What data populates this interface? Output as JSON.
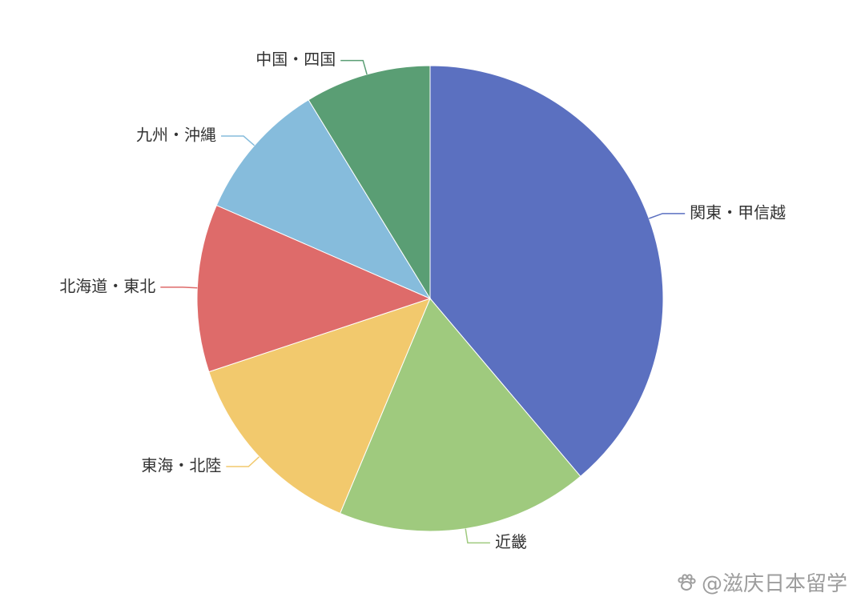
{
  "chart_data": {
    "type": "pie",
    "title": "",
    "categories": [
      "関東・甲信越",
      "近畿",
      "東海・北陸",
      "北海道・東北",
      "九州・沖縄",
      "中国・四国"
    ],
    "values": [
      40,
      18,
      14,
      12,
      10,
      9
    ],
    "colors": [
      "#5b70c0",
      "#9fca7e",
      "#f2c96d",
      "#de6b6a",
      "#86bcdc",
      "#5a9e74"
    ],
    "start_angle": "12 o'clock",
    "direction": "clockwise",
    "legend": "none"
  },
  "watermark": {
    "text": "@滋庆日本留学",
    "icon": "paw-icon"
  }
}
